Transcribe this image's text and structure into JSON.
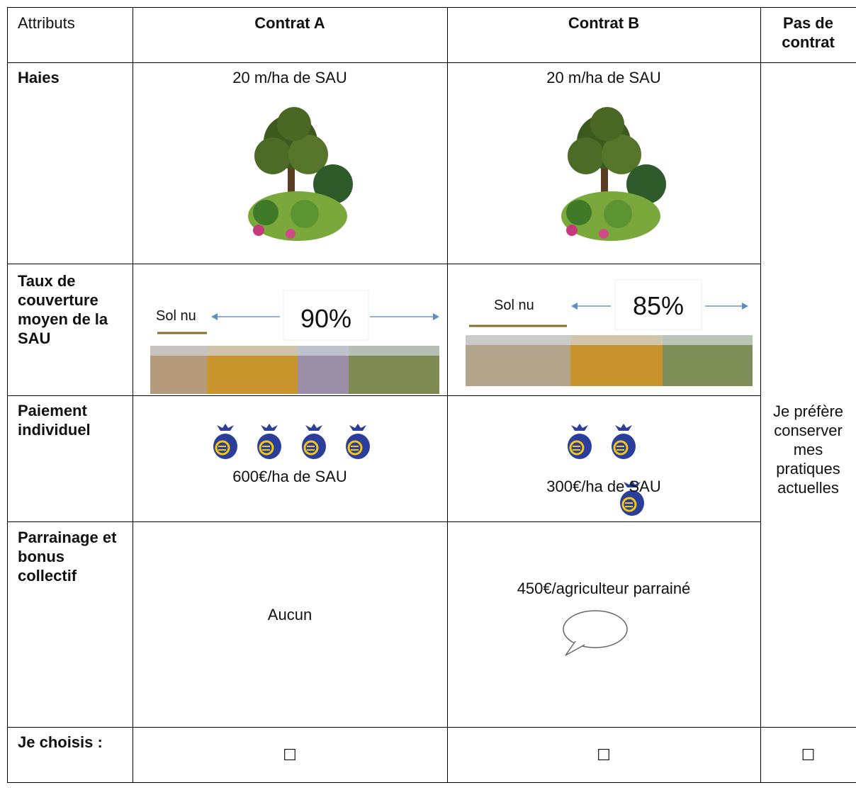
{
  "table": {
    "header": [
      "Attributs",
      "Contrat A",
      "Contrat B",
      "Pas de contrat"
    ],
    "rows": [
      [
        "Haies",
        "20 m/ha de SAU",
        "20 m/ha de SAU"
      ],
      [
        "Taux de couverture moyen de la SAU",
        "",
        ""
      ],
      [
        "Paiement individuel",
        "600€/ha de SAU",
        "300€/ha de SAU"
      ],
      [
        "Parrainage et bonus collectif",
        "Aucun",
        "450€/agriculteur parrainé"
      ],
      [
        "Je choisis :",
        "☐",
        "☐",
        "☐"
      ]
    ],
    "no_contract_text": "Je préfère conserver mes pratiques actuelles",
    "coverage_images": {
      "bare_soil_label": "Sol nu",
      "a_percent": "90%",
      "b_percent": "85%"
    }
  }
}
